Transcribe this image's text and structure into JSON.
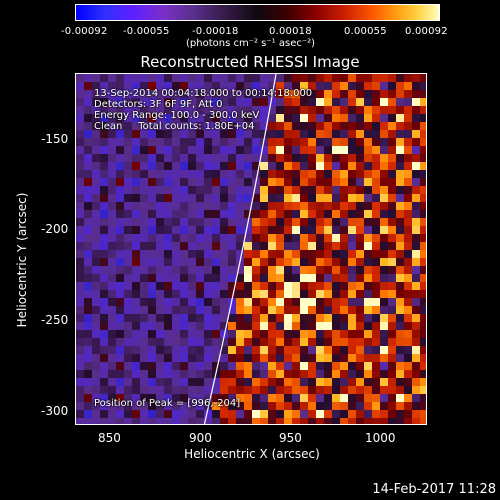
{
  "colorbar": {
    "ticks": [
      "-0.00092",
      "-0.00055",
      "-0.00018",
      "0.00018",
      "0.00055",
      "0.00092"
    ],
    "units": "(photons cm⁻² s⁻¹ asec⁻²)"
  },
  "title": "Reconstructed RHESSI Image",
  "annotation": {
    "line1": "13-Sep-2014 00:04:18.000 to 00:14:18.000",
    "line2": "Detectors: 3F 6F 9F, Att 0",
    "line3": "Energy Range: 100.0 - 300.0 keV",
    "line4": "Clean     Total counts: 1.80E+04",
    "peak": "Position of Peak = [996,-204]"
  },
  "axes": {
    "xlabel": "Heliocentric X (arcsec)",
    "ylabel": "Heliocentric Y (arcsec)",
    "xticks": [
      "850",
      "900",
      "950",
      "1000"
    ],
    "yticks": [
      "-150",
      "-200",
      "-250",
      "-300"
    ]
  },
  "footer": {
    "timestamp": "14-Feb-2017 11:28"
  },
  "palette": {
    "cold": "#2020c0",
    "dark": "#2a1040",
    "hot": "#ff8000",
    "white": "#ffffff"
  }
}
